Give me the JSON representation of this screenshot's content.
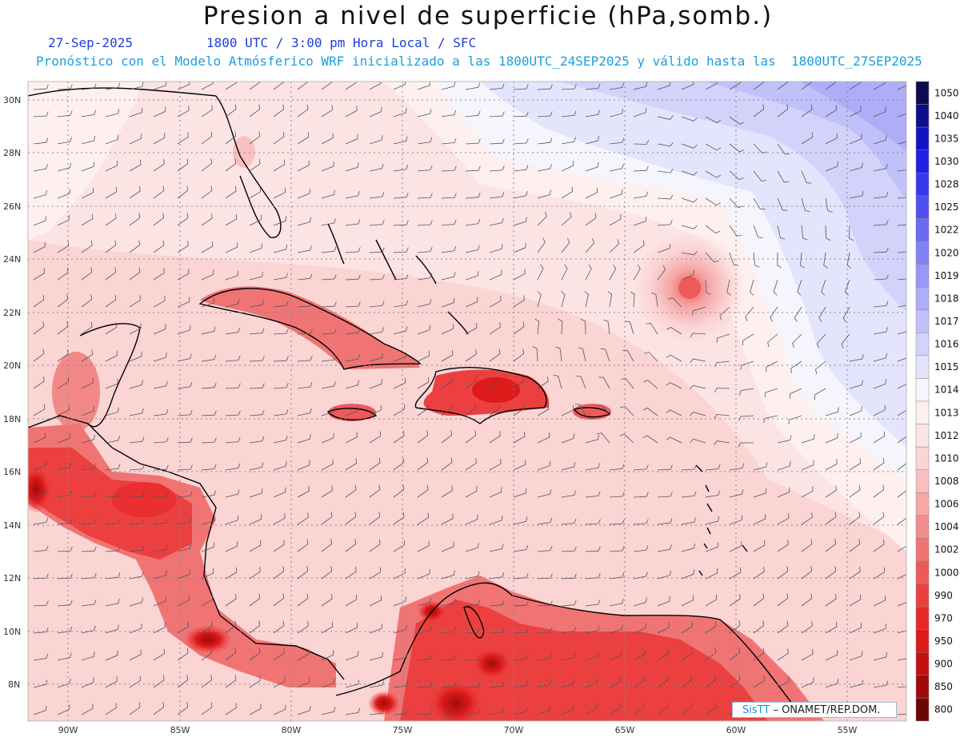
{
  "map": {
    "title": "Presion a nivel de superficie (hPa,somb.)",
    "date": "27-Sep-2025",
    "time": "1800 UTC / 3:00 pm Hora Local / SFC",
    "forecast_note": "Pronóstico con el Modelo Atmósferico WRF inicializado a las 1800UTC_24SEP2025 y válido hasta las  1800UTC_27SEP2025",
    "credit_brand": "SisTT",
    "credit_text": "– ONAMET/REP.DOM."
  },
  "lat_labels": [
    "30N",
    "28N",
    "26N",
    "24N",
    "22N",
    "20N",
    "18N",
    "16N",
    "14N",
    "12N",
    "10N",
    "8N"
  ],
  "lon_labels": [
    "90W",
    "85W",
    "80W",
    "75W",
    "70W",
    "65W",
    "60W",
    "55W"
  ],
  "colorbar": [
    {
      "label": "1050",
      "color": "#0b0b4d"
    },
    {
      "label": "1040",
      "color": "#0e0e8c"
    },
    {
      "label": "1035",
      "color": "#1212c4"
    },
    {
      "label": "1030",
      "color": "#2020e6"
    },
    {
      "label": "1028",
      "color": "#3838f0"
    },
    {
      "label": "1025",
      "color": "#5050f0"
    },
    {
      "label": "1022",
      "color": "#6a6af2"
    },
    {
      "label": "1020",
      "color": "#8282f4"
    },
    {
      "label": "1019",
      "color": "#9898f6"
    },
    {
      "label": "1018",
      "color": "#adadf8"
    },
    {
      "label": "1017",
      "color": "#c0c0fa"
    },
    {
      "label": "1016",
      "color": "#d2d2fb"
    },
    {
      "label": "1015",
      "color": "#e4e4fd"
    },
    {
      "label": "1014",
      "color": "#f5f5fe"
    },
    {
      "label": "1013",
      "color": "#fff0f0"
    },
    {
      "label": "1012",
      "color": "#fde4e4"
    },
    {
      "label": "1010",
      "color": "#fbd4d4"
    },
    {
      "label": "1008",
      "color": "#f8c0c0"
    },
    {
      "label": "1006",
      "color": "#f6a8a8"
    },
    {
      "label": "1004",
      "color": "#f38e8e"
    },
    {
      "label": "1002",
      "color": "#f07474"
    },
    {
      "label": "1000",
      "color": "#ee5a5a"
    },
    {
      "label": "990",
      "color": "#ec4040"
    },
    {
      "label": "970",
      "color": "#e82828"
    },
    {
      "label": "950",
      "color": "#de1a1a"
    },
    {
      "label": "900",
      "color": "#c41010"
    },
    {
      "label": "850",
      "color": "#a00a0a"
    },
    {
      "label": "800",
      "color": "#6e0606"
    }
  ]
}
